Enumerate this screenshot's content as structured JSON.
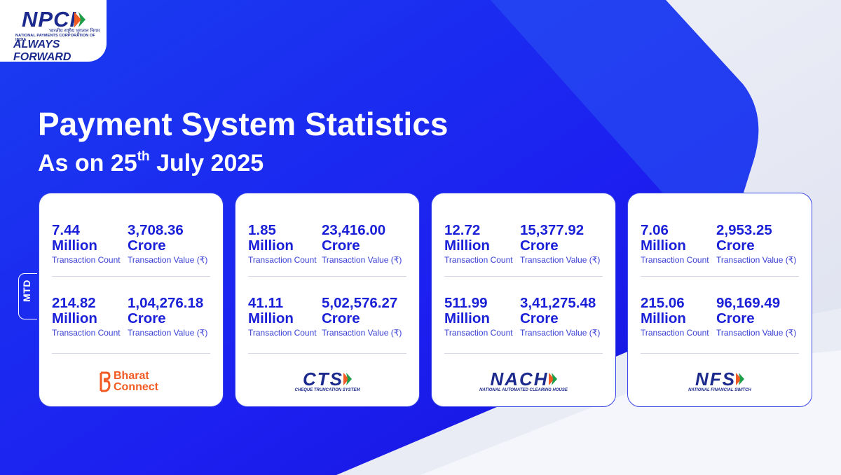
{
  "header": {
    "logo_text": "NPCI",
    "logo_hindi": "भारतीय राष्ट्रीय भुगतान निगम",
    "logo_fullname": "NATIONAL PAYMENTS CORPORATION OF INDIA",
    "tagline": "ALWAYS FORWARD"
  },
  "title": "Payment System Statistics",
  "subtitle": {
    "prefix": "As on 25",
    "sup": "th",
    "suffix": " July 2025"
  },
  "mtd_label": "MTD",
  "count_label": "Transaction Count",
  "value_label": "Transaction Value (₹)",
  "count_unit": "Million",
  "value_unit": "Crore",
  "cards": [
    {
      "name": "Bharat Connect",
      "brand_line1": "Bharat",
      "brand_line2": "Connect",
      "rows": [
        {
          "count": "7.44",
          "value": "3,708.36"
        },
        {
          "count": "214.82",
          "value": "1,04,276.18"
        }
      ]
    },
    {
      "name": "CTS",
      "brand_line1": "CTS",
      "brand_line2": "CHEQUE TRUNCATION SYSTEM",
      "rows": [
        {
          "count": "1.85",
          "value": "23,416.00"
        },
        {
          "count": "41.11",
          "value": "5,02,576.27"
        }
      ]
    },
    {
      "name": "NACH",
      "brand_line1": "NACH",
      "brand_line2": "NATIONAL AUTOMATED CLEARING HOUSE",
      "rows": [
        {
          "count": "12.72",
          "value": "15,377.92"
        },
        {
          "count": "511.99",
          "value": "3,41,275.48"
        }
      ]
    },
    {
      "name": "NFS",
      "brand_line1": "NFS",
      "brand_line2": "NATIONAL FINANCIAL SWITCH",
      "rows": [
        {
          "count": "7.06",
          "value": "2,953.25"
        },
        {
          "count": "215.06",
          "value": "96,169.49"
        }
      ]
    }
  ],
  "colors": {
    "blue_primary": "#1b1fe6",
    "brand_orange": "#f15a22",
    "brand_green": "#1e9f4a",
    "navy": "#1b2a8c"
  }
}
